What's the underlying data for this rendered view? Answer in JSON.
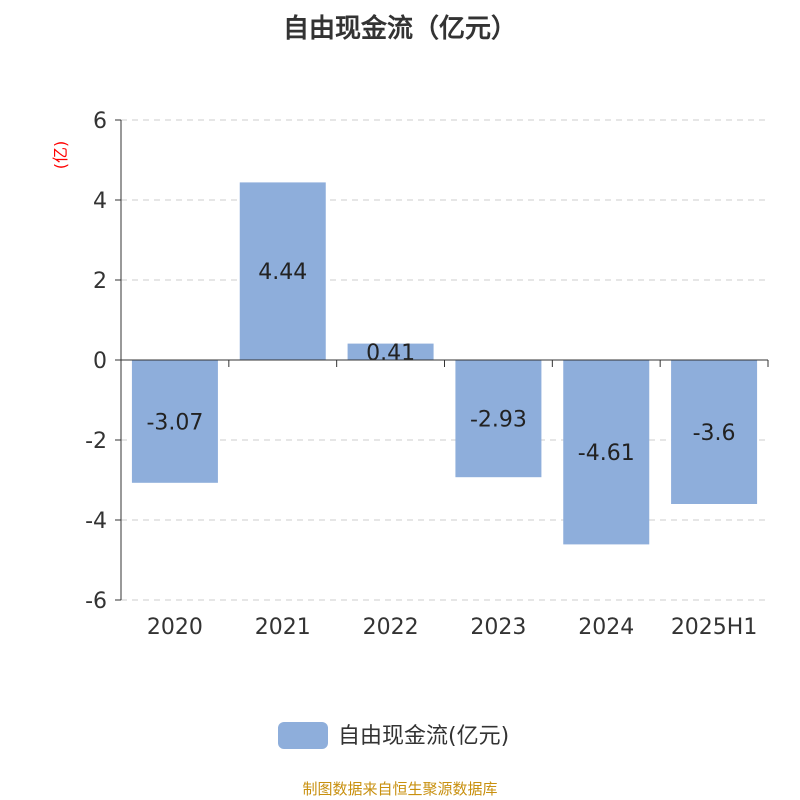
{
  "chart_data": {
    "type": "bar",
    "title": "自由现金流（亿元）",
    "ylabel": "(亿)",
    "categories": [
      "2020",
      "2021",
      "2022",
      "2023",
      "2024",
      "2025H1"
    ],
    "series": [
      {
        "name": "自由现金流(亿元)",
        "values": [
          -3.07,
          4.44,
          0.41,
          -2.93,
          -4.61,
          -3.6
        ]
      }
    ],
    "data_labels": [
      "-3.07",
      "4.44",
      "0.41",
      "-2.93",
      "-4.61",
      "-3.6"
    ],
    "ylim": [
      -6,
      6
    ],
    "yticks": [
      6,
      4,
      2,
      0,
      -2,
      -4,
      -6
    ],
    "grid": true,
    "legend": "bottom",
    "colors": {
      "bar": "#8eaedb",
      "ylabel": "#ff0000",
      "footer": "#c8900f"
    }
  },
  "footer": "制图数据来自恒生聚源数据库"
}
